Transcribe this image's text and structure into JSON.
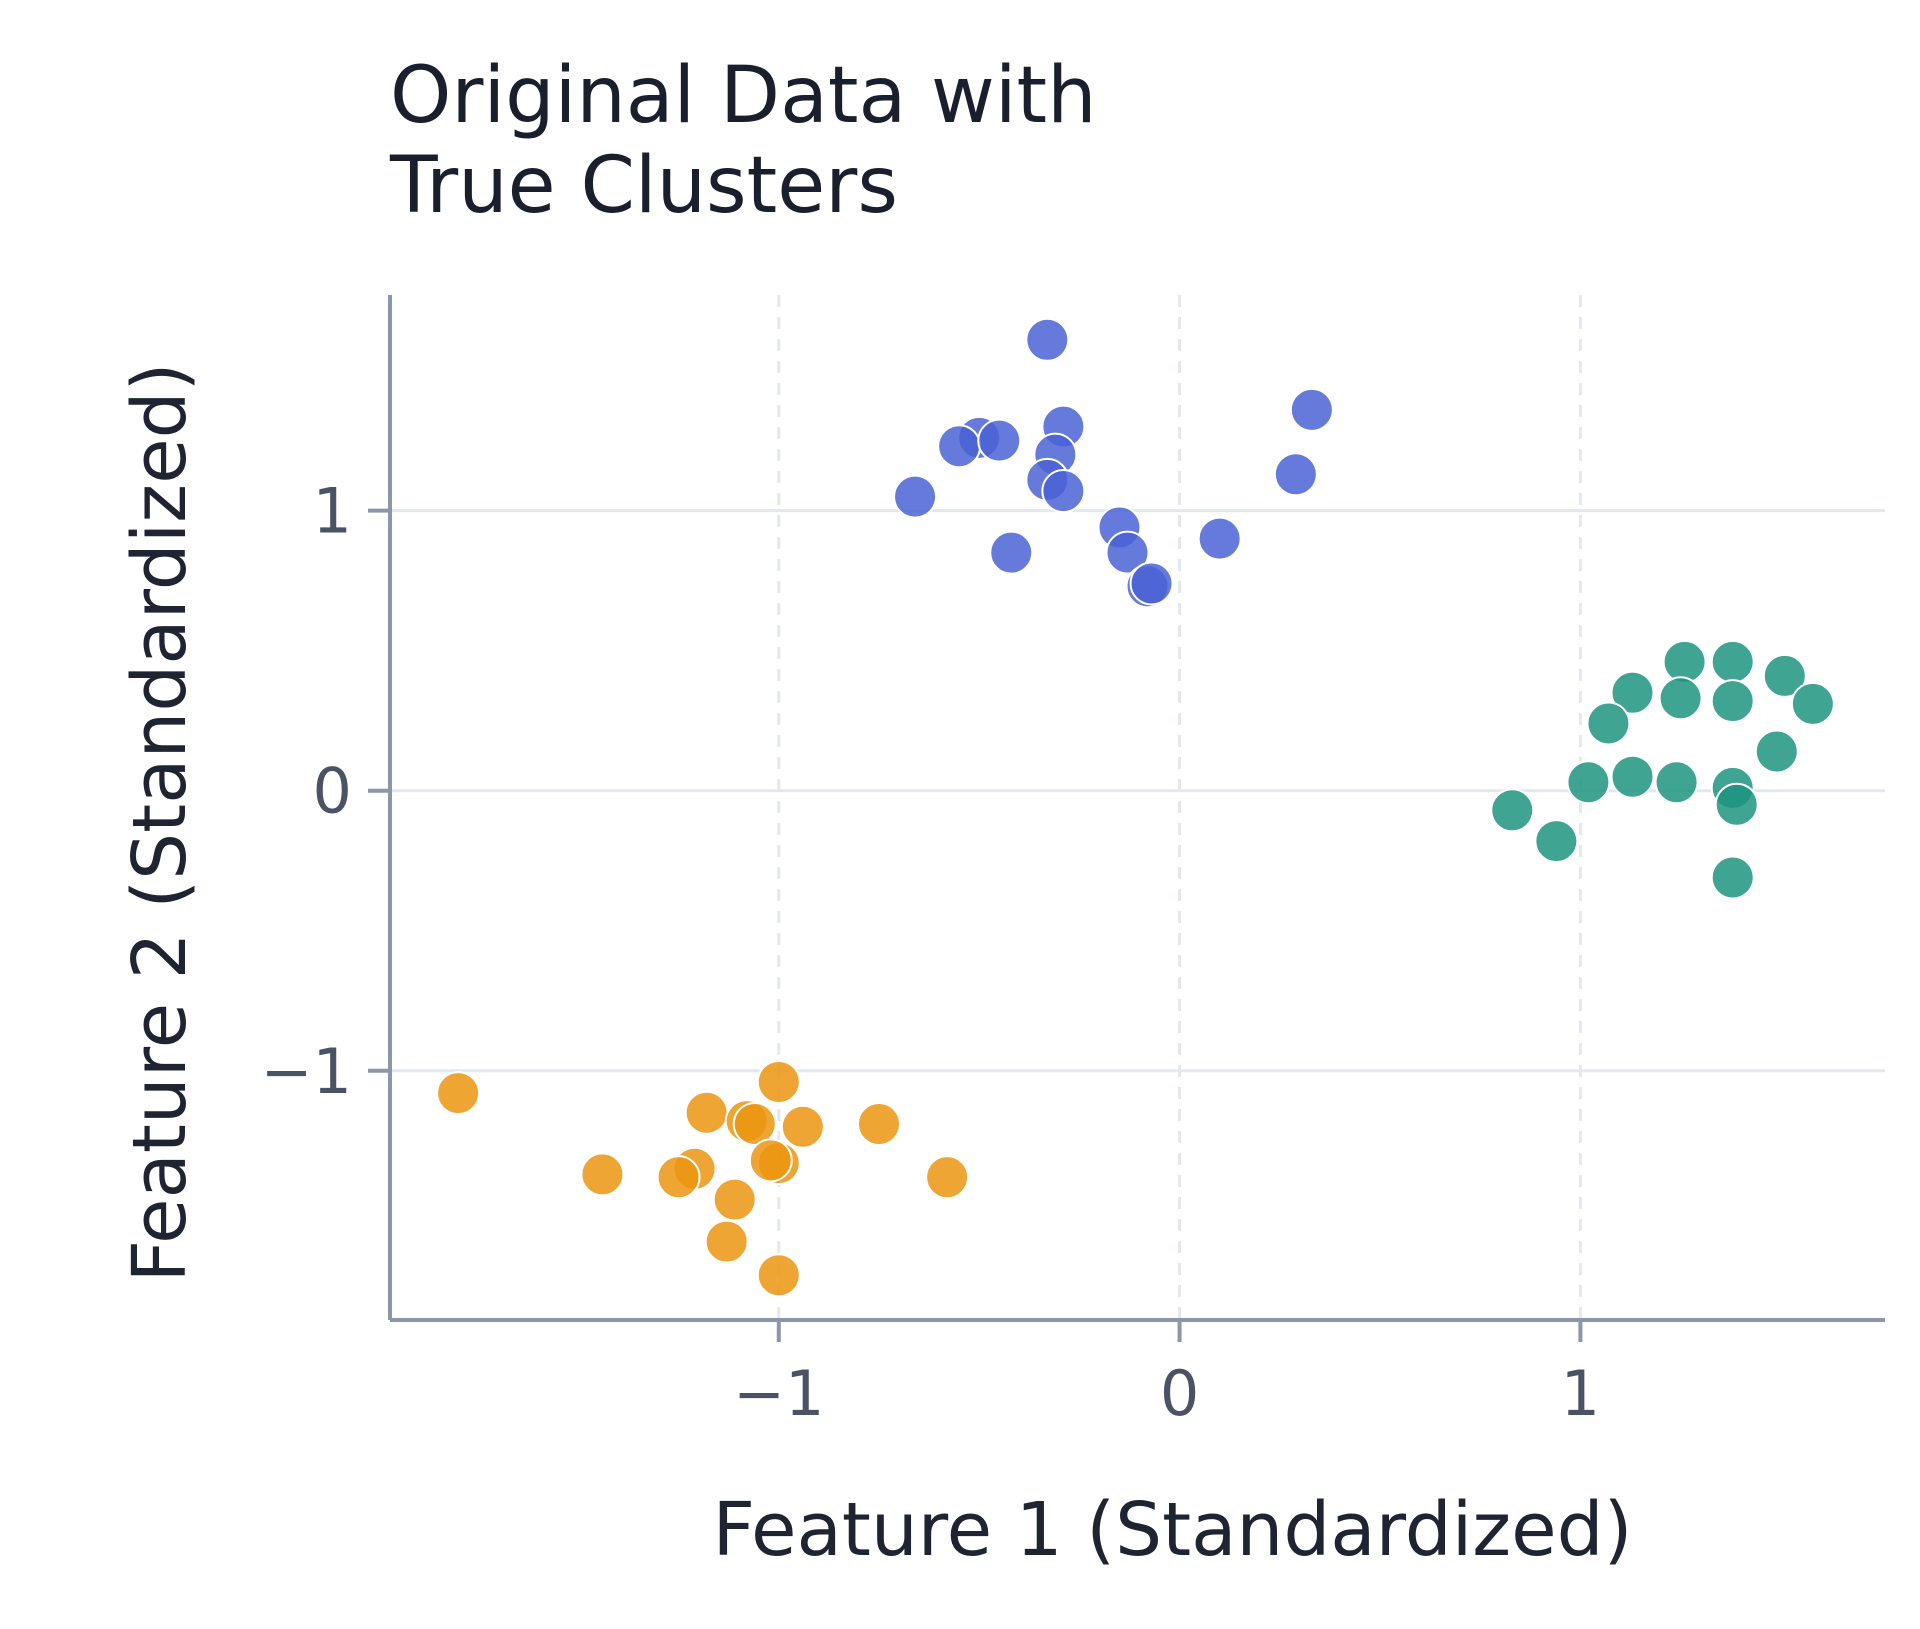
{
  "chart_data": {
    "type": "scatter",
    "title_lines": [
      "Original Data with",
      "True Clusters"
    ],
    "xlabel": "Feature 1 (Standardized)",
    "ylabel": "Feature 2 (Standardized)",
    "xlim": [
      -1.97,
      1.76
    ],
    "ylim": [
      -1.89,
      1.77
    ],
    "x_ticks": [
      {
        "value": -1,
        "label": "−1"
      },
      {
        "value": 0,
        "label": "0"
      },
      {
        "value": 1,
        "label": "1"
      }
    ],
    "y_ticks": [
      {
        "value": -1,
        "label": "−1"
      },
      {
        "value": 0,
        "label": "0"
      },
      {
        "value": 1,
        "label": "1"
      }
    ],
    "grid": {
      "x": "dashed",
      "y": "solid"
    },
    "legend": "none",
    "colors": {
      "axis": "#8a96aa",
      "grid": "#e3e7ee",
      "marker_edge": "#ffffff"
    },
    "series": [
      {
        "color": "#4a63d3",
        "points": [
          [
            -0.33,
            1.61
          ],
          [
            0.33,
            1.36
          ],
          [
            -0.29,
            1.3
          ],
          [
            -0.5,
            1.26
          ],
          [
            -0.55,
            1.23
          ],
          [
            -0.45,
            1.25
          ],
          [
            -0.31,
            1.2
          ],
          [
            0.29,
            1.13
          ],
          [
            -0.33,
            1.11
          ],
          [
            -0.29,
            1.07
          ],
          [
            -0.66,
            1.05
          ],
          [
            -0.15,
            0.94
          ],
          [
            0.1,
            0.9
          ],
          [
            -0.42,
            0.85
          ],
          [
            -0.13,
            0.85
          ],
          [
            -0.08,
            0.73
          ],
          [
            -0.07,
            0.74
          ]
        ]
      },
      {
        "color": "#1f9480",
        "points": [
          [
            1.26,
            0.46
          ],
          [
            1.38,
            0.46
          ],
          [
            1.51,
            0.41
          ],
          [
            1.13,
            0.35
          ],
          [
            1.25,
            0.33
          ],
          [
            1.38,
            0.32
          ],
          [
            1.58,
            0.31
          ],
          [
            1.07,
            0.24
          ],
          [
            1.49,
            0.14
          ],
          [
            1.02,
            0.03
          ],
          [
            1.13,
            0.05
          ],
          [
            1.24,
            0.03
          ],
          [
            1.38,
            0.01
          ],
          [
            1.39,
            -0.05
          ],
          [
            0.83,
            -0.07
          ],
          [
            0.94,
            -0.18
          ],
          [
            1.38,
            -0.31
          ]
        ]
      },
      {
        "color": "#eb9511",
        "points": [
          [
            -1.8,
            -1.08
          ],
          [
            -1.0,
            -1.04
          ],
          [
            -1.18,
            -1.15
          ],
          [
            -0.75,
            -1.19
          ],
          [
            -1.08,
            -1.18
          ],
          [
            -1.06,
            -1.19
          ],
          [
            -0.94,
            -1.2
          ],
          [
            -1.0,
            -1.33
          ],
          [
            -1.02,
            -1.32
          ],
          [
            -1.21,
            -1.35
          ],
          [
            -1.44,
            -1.37
          ],
          [
            -1.25,
            -1.38
          ],
          [
            -0.58,
            -1.38
          ],
          [
            -1.11,
            -1.46
          ],
          [
            -1.13,
            -1.61
          ],
          [
            -1.0,
            -1.73
          ]
        ]
      }
    ]
  }
}
